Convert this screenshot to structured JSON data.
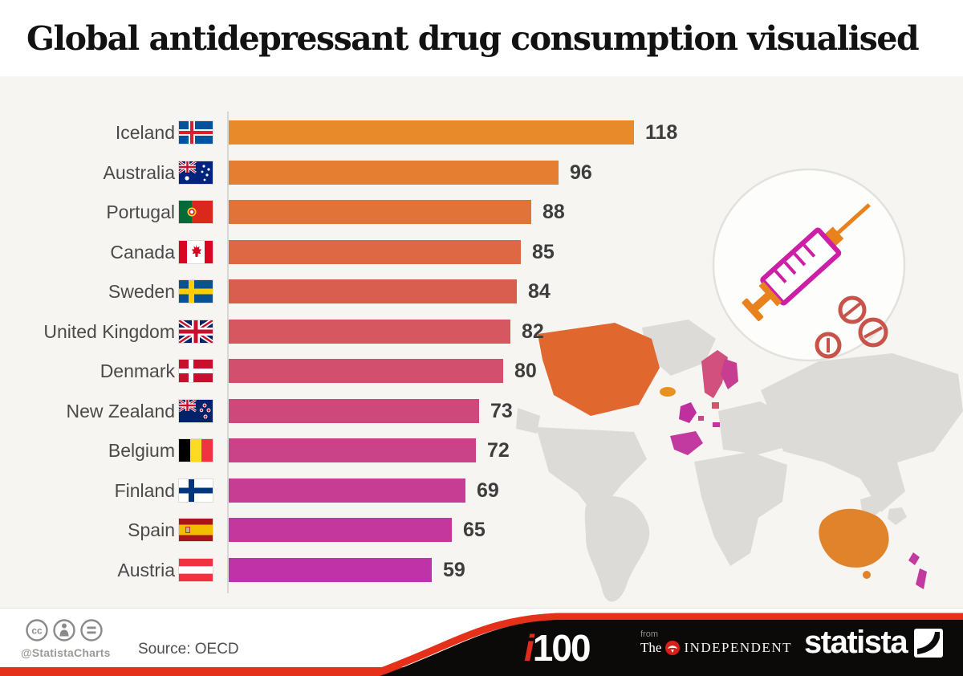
{
  "title": "Global antidepressant drug consumption visualised",
  "chart_data": {
    "type": "bar",
    "orientation": "horizontal",
    "title": "Global antidepressant drug consumption visualised",
    "xlim": [
      0,
      130
    ],
    "xmax_scale": 118,
    "grid": false,
    "legend": "none",
    "categories": [
      "Iceland",
      "Australia",
      "Portugal",
      "Canada",
      "Sweden",
      "United Kingdom",
      "Denmark",
      "New Zealand",
      "Belgium",
      "Finland",
      "Spain",
      "Austria"
    ],
    "values": [
      118,
      96,
      88,
      85,
      84,
      82,
      80,
      73,
      72,
      69,
      65,
      59
    ],
    "rows": [
      {
        "country": "Iceland",
        "value": 118,
        "flag": "is",
        "color": "#E8892A"
      },
      {
        "country": "Australia",
        "value": 96,
        "flag": "au",
        "color": "#E57E31"
      },
      {
        "country": "Portugal",
        "value": 88,
        "flag": "pt",
        "color": "#E17338"
      },
      {
        "country": "Canada",
        "value": 85,
        "flag": "ca",
        "color": "#DE6843"
      },
      {
        "country": "Sweden",
        "value": 84,
        "flag": "se",
        "color": "#DA5E50"
      },
      {
        "country": "United Kingdom",
        "value": 82,
        "flag": "gb",
        "color": "#D6575F"
      },
      {
        "country": "Denmark",
        "value": 80,
        "flag": "dk",
        "color": "#D24F6D"
      },
      {
        "country": "New Zealand",
        "value": 73,
        "flag": "nz",
        "color": "#CE487B"
      },
      {
        "country": "Belgium",
        "value": 72,
        "flag": "be",
        "color": "#CA4288"
      },
      {
        "country": "Finland",
        "value": 69,
        "flag": "fi",
        "color": "#C73D93"
      },
      {
        "country": "Spain",
        "value": 65,
        "flag": "es",
        "color": "#C4389E"
      },
      {
        "country": "Austria",
        "value": 59,
        "flag": "at",
        "color": "#C033A8"
      }
    ]
  },
  "map": {
    "base_color": "#dcdbd7",
    "highlights": {
      "canada": "#E0682F",
      "iceland": "#E8921F",
      "australia": "#E0832B",
      "uk": "#C02F9E",
      "scandinavia": "#D1507E",
      "finland": "#C73D92",
      "iberia": "#C23AA0",
      "new_zealand": "#C23AA0",
      "denmark": "#D4556A",
      "central_europe": "#C433A6"
    }
  },
  "icons": {
    "license": [
      "cc-icon",
      "attribution-icon",
      "no-derivatives-icon"
    ],
    "illustration": "syringe-and-pills",
    "syringe_barrel_color": "#CC1FA6",
    "syringe_plunger_color": "#E8821E",
    "pill_color": "#C8534B"
  },
  "footer": {
    "handle": "@StatistaCharts",
    "source": "Source: OECD",
    "i100_i": "i",
    "i100_num": "100",
    "independent_from": "from",
    "independent_the": "The",
    "independent_name": "INDEPENDENT",
    "statista": "statista",
    "accent_red": "#E5301A",
    "band_black": "#0c0a09"
  }
}
